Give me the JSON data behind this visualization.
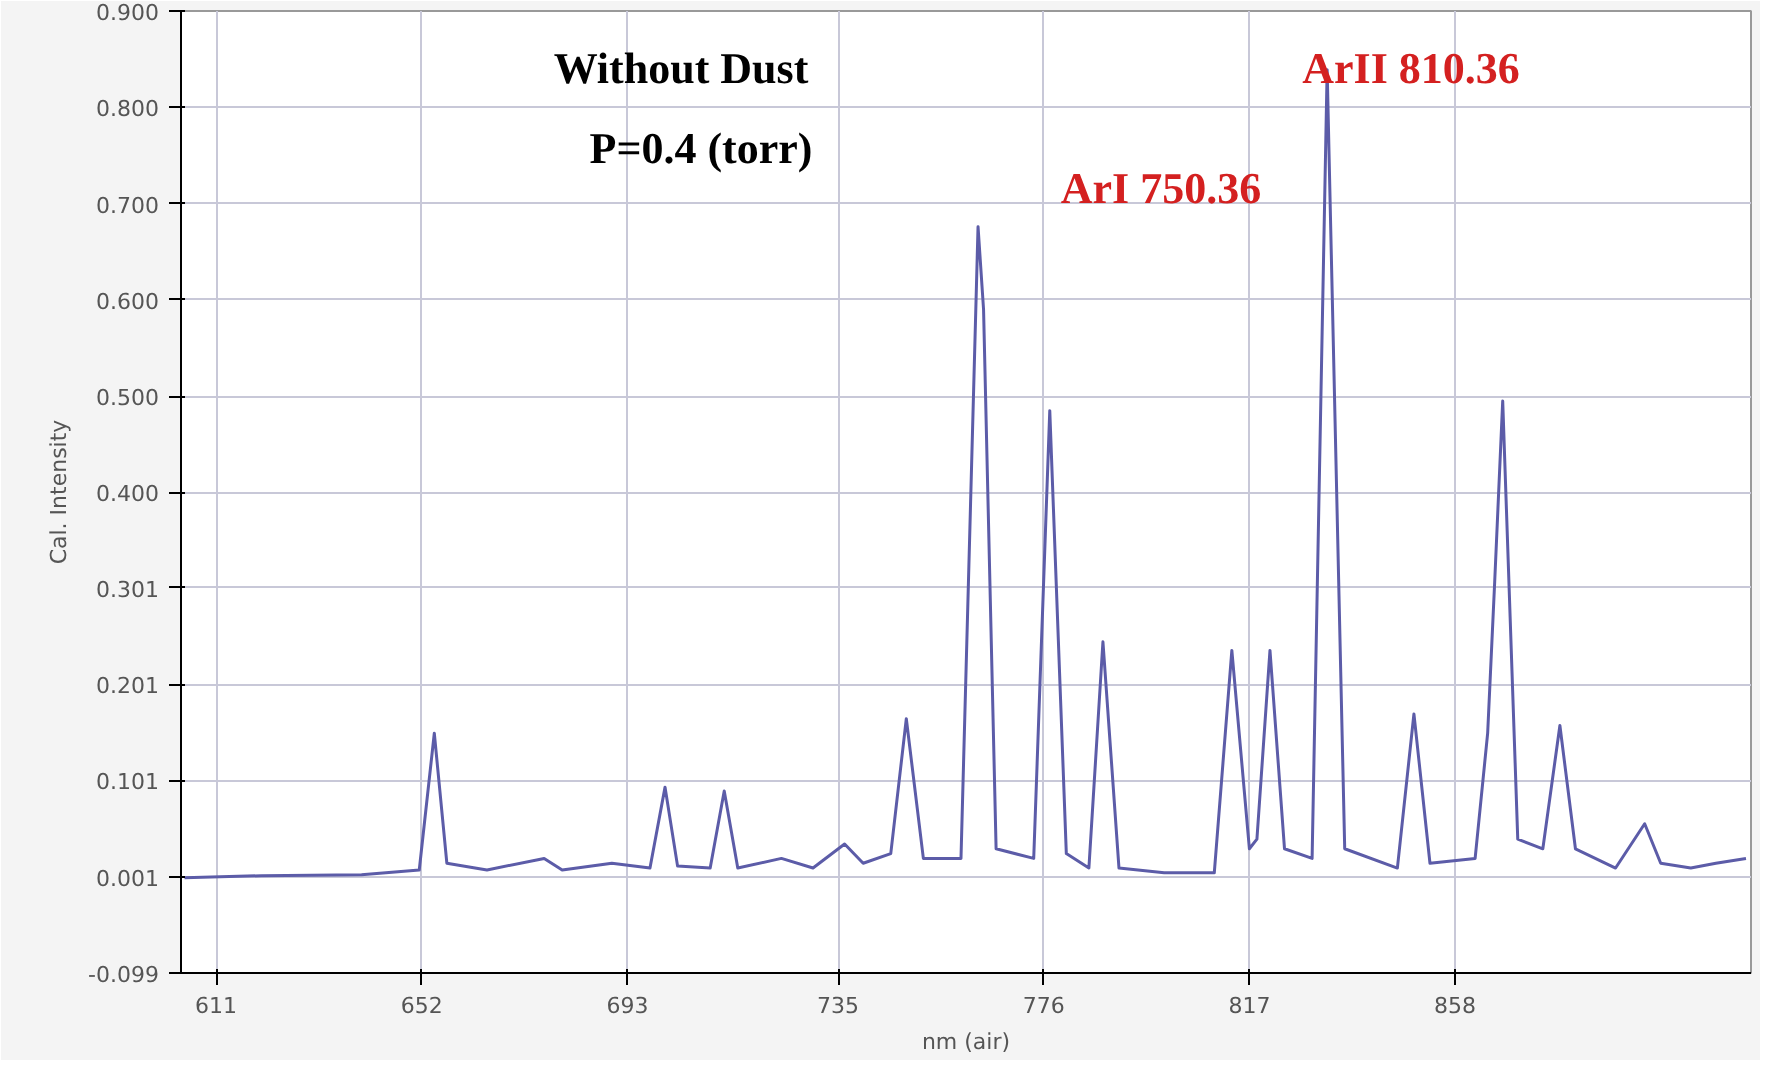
{
  "chart_data": {
    "type": "line",
    "xlabel": "nm (air)",
    "ylabel": "Cal. Intensity",
    "annotations": [
      "Without Dust",
      "P=0.4 (torr)",
      "ArI 750.36",
      "ArII 810.36"
    ],
    "x": [
      604.7,
      620,
      640,
      651.5,
      654.5,
      657,
      665,
      676.4,
      680,
      689.9,
      697.5,
      700.5,
      703,
      709.5,
      712.3,
      715,
      723.7,
      730,
      736.3,
      740,
      745.5,
      748.6,
      752,
      759.5,
      762.9,
      764,
      766.5,
      774,
      777.2,
      780.5,
      785,
      787.8,
      791,
      800,
      810,
      813.5,
      817,
      818.5,
      821.1,
      824,
      829.5,
      832.5,
      836,
      846.5,
      849.8,
      853,
      862,
      864.5,
      865.9,
      867.5,
      870.5,
      875.5,
      878.9,
      882,
      890,
      895.8,
      899,
      905,
      910,
      916
    ],
    "series": [
      {
        "color": "#5c5ca8",
        "values": [
          0.0,
          0.002,
          0.003,
          0.008,
          0.15,
          0.015,
          0.008,
          0.02,
          0.008,
          0.015,
          0.01,
          0.094,
          0.012,
          0.01,
          0.09,
          0.01,
          0.02,
          0.01,
          0.035,
          0.015,
          0.025,
          0.165,
          0.02,
          0.02,
          0.676,
          0.59,
          0.03,
          0.02,
          0.485,
          0.025,
          0.01,
          0.245,
          0.01,
          0.005,
          0.005,
          0.236,
          0.03,
          0.04,
          0.236,
          0.03,
          0.02,
          0.839,
          0.03,
          0.01,
          0.17,
          0.015,
          0.02,
          0.15,
          0.307,
          0.495,
          0.04,
          0.03,
          0.158,
          0.03,
          0.01,
          0.056,
          0.015,
          0.01,
          0.015,
          0.02
        ]
      }
    ],
    "xlim": [
      604,
      917
    ],
    "ylim": [
      -0.099,
      0.9
    ],
    "xticks": [
      611,
      652,
      693,
      735,
      776,
      817,
      858
    ],
    "yticks": [
      {
        "value": -0.099,
        "label": "-0.099"
      },
      {
        "value": 0.001,
        "label": "0.001"
      },
      {
        "value": 0.101,
        "label": "0.101"
      },
      {
        "value": 0.201,
        "label": "0.201"
      },
      {
        "value": 0.301,
        "label": "0.301"
      },
      {
        "value": 0.4,
        "label": "0.400"
      },
      {
        "value": 0.5,
        "label": "0.500"
      },
      {
        "value": 0.6,
        "label": "0.600"
      },
      {
        "value": 0.7,
        "label": "0.700"
      },
      {
        "value": 0.8,
        "label": "0.800"
      },
      {
        "value": 0.9,
        "label": "0.900"
      }
    ],
    "grid": true,
    "line_style": "solid"
  }
}
